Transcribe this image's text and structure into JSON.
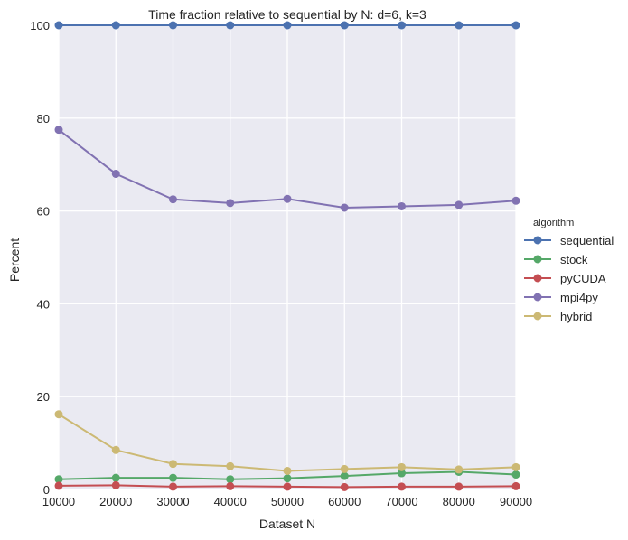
{
  "chart_data": {
    "type": "line",
    "title": "Time fraction relative to sequential by N: d=6, k=3",
    "xlabel": "Dataset N",
    "ylabel": "Percent",
    "x": [
      10000,
      20000,
      30000,
      40000,
      50000,
      60000,
      70000,
      80000,
      90000
    ],
    "x_ticks": [
      "10000",
      "20000",
      "30000",
      "40000",
      "50000",
      "60000",
      "70000",
      "80000",
      "90000"
    ],
    "y_ticks": [
      "0",
      "20",
      "40",
      "60",
      "80",
      "100"
    ],
    "xlim": [
      10000,
      90000
    ],
    "ylim": [
      0,
      100
    ],
    "grid": true,
    "legend": {
      "title": "algorithm",
      "placement": "right"
    },
    "series": [
      {
        "name": "sequential",
        "color": "#4c72b0",
        "values": [
          100,
          100,
          100,
          100,
          100,
          100,
          100,
          100,
          100
        ]
      },
      {
        "name": "stock",
        "color": "#55a868",
        "values": [
          2.2,
          2.5,
          2.5,
          2.2,
          2.4,
          2.9,
          3.5,
          3.8,
          3.2
        ]
      },
      {
        "name": "pyCUDA",
        "color": "#c44e52",
        "values": [
          0.8,
          0.9,
          0.6,
          0.7,
          0.6,
          0.5,
          0.6,
          0.6,
          0.7
        ]
      },
      {
        "name": "mpi4py",
        "color": "#8172b2",
        "values": [
          77.5,
          68.0,
          62.5,
          61.7,
          62.6,
          60.7,
          61.0,
          61.3,
          62.2
        ]
      },
      {
        "name": "hybrid",
        "color": "#ccb974",
        "values": [
          16.2,
          8.5,
          5.5,
          5.0,
          4.0,
          4.4,
          4.8,
          4.3,
          4.8
        ]
      }
    ]
  }
}
